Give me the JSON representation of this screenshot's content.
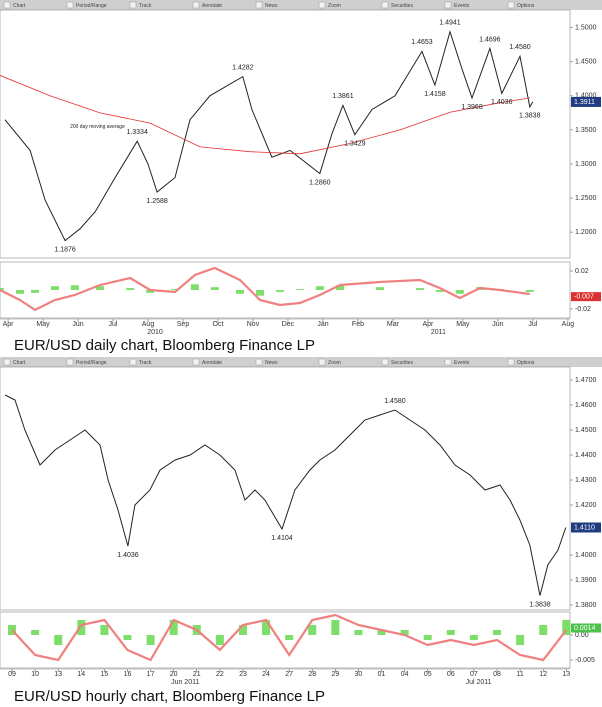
{
  "chart_data": [
    {
      "type": "line",
      "title": "EUR/USD daily chart, Bloomberg Finance LP",
      "toolbar": [
        "Chart",
        "Period/Range",
        "Track",
        "Annotate",
        "News",
        "Zoom",
        "Securities",
        "Events",
        "Options"
      ],
      "xlim": [
        -0.23,
        16.06
      ],
      "xticks": [
        {
          "value": 0,
          "label": "Apr"
        },
        {
          "value": 1,
          "label": "May"
        },
        {
          "value": 2,
          "label": "Jun"
        },
        {
          "value": 3,
          "label": "Jul"
        },
        {
          "value": 4,
          "label": "Aug"
        },
        {
          "value": 5,
          "label": "Sep"
        },
        {
          "value": 6,
          "label": "Oct"
        },
        {
          "value": 7,
          "label": "Nov"
        },
        {
          "value": 8,
          "label": "Dec"
        },
        {
          "value": 9,
          "label": "Jan"
        },
        {
          "value": 10,
          "label": "Feb"
        },
        {
          "value": 11,
          "label": "Mar"
        },
        {
          "value": 12,
          "label": "Apr"
        },
        {
          "value": 13,
          "label": "May"
        },
        {
          "value": 14,
          "label": "Jun"
        },
        {
          "value": 15,
          "label": "Jul"
        },
        {
          "value": 16,
          "label": "Aug"
        }
      ],
      "periods": [
        {
          "value": 4.2,
          "label": "2010"
        },
        {
          "value": 12.3,
          "label": "2011"
        }
      ],
      "ylim": [
        1.162,
        1.526
      ],
      "yticks": [
        {
          "value": 1.2,
          "label": "1.2000"
        },
        {
          "value": 1.25,
          "label": "1.2500"
        },
        {
          "value": 1.3,
          "label": "1.3000"
        },
        {
          "value": 1.35,
          "label": "1.3500"
        },
        {
          "value": 1.4,
          "label": "1.4000"
        },
        {
          "value": 1.45,
          "label": "1.4500"
        },
        {
          "value": 1.5,
          "label": "1.5000"
        }
      ],
      "series": [
        {
          "color": "#222222",
          "x": [
            -0.09,
            0.63,
            1.06,
            1.63,
            2.06,
            2.49,
            3.06,
            3.69,
            4.0,
            4.26,
            4.77,
            5.2,
            5.77,
            6.71,
            6.97,
            7.54,
            8.06,
            8.91,
            9.26,
            9.57,
            9.91,
            10.4,
            11.06,
            11.83,
            12.2,
            12.63,
            12.97,
            13.26,
            13.77,
            14.11,
            14.63,
            14.91,
            15.0
          ],
          "values": [
            1.365,
            1.32,
            1.247,
            1.1876,
            1.205,
            1.23,
            1.28,
            1.3334,
            1.3,
            1.2588,
            1.28,
            1.365,
            1.4,
            1.4282,
            1.38,
            1.31,
            1.32,
            1.286,
            1.345,
            1.3861,
            1.3429,
            1.38,
            1.4,
            1.4653,
            1.4158,
            1.4941,
            1.44,
            1.3968,
            1.4696,
            1.4036,
            1.458,
            1.3838,
            1.3911
          ]
        },
        {
          "name": "200 day moving average",
          "color": "#e03030",
          "x": [
            -0.23,
            1.2,
            2.63,
            4.06,
            5.49,
            6.91,
            8.34,
            9.77,
            11.2,
            12.63,
            14.06,
            14.91
          ],
          "values": [
            1.43,
            1.4,
            1.375,
            1.36,
            1.325,
            1.318,
            1.315,
            1.33,
            1.35,
            1.376,
            1.39,
            1.397
          ]
        }
      ],
      "annotations": [
        {
          "x": 1.63,
          "value": 1.1876,
          "label": "1.1876"
        },
        {
          "x": 3.69,
          "value": 1.3334,
          "label": "1.3334"
        },
        {
          "x": 4.26,
          "value": 1.2588,
          "label": "1.2588"
        },
        {
          "x": 6.71,
          "value": 1.4282,
          "label": "1.4282"
        },
        {
          "x": 8.91,
          "value": 1.286,
          "label": "1.2860"
        },
        {
          "x": 9.57,
          "value": 1.3861,
          "label": "1.3861"
        },
        {
          "x": 9.91,
          "value": 1.3429,
          "label": "1.3429"
        },
        {
          "x": 11.83,
          "value": 1.4653,
          "label": "1.4653"
        },
        {
          "x": 12.2,
          "value": 1.4158,
          "label": "1.4158"
        },
        {
          "x": 12.63,
          "value": 1.4941,
          "label": "1.4941"
        },
        {
          "x": 13.26,
          "value": 1.3968,
          "label": "1.3968"
        },
        {
          "x": 13.77,
          "value": 1.4696,
          "label": "1.4696"
        },
        {
          "x": 14.11,
          "value": 1.4036,
          "label": "1.4036"
        },
        {
          "x": 14.63,
          "value": 1.458,
          "label": "1.4580"
        },
        {
          "x": 14.91,
          "value": 1.3838,
          "label": "1.3838"
        }
      ],
      "last_value": {
        "value": 1.3911,
        "label": "1.3911"
      },
      "indicator": {
        "ylim": [
          -0.0295,
          0.0295
        ],
        "yticks": [
          0.02,
          -0.02
        ],
        "last_value": -0.007,
        "line_color": "#f08080",
        "histogram_color": "#66d94f",
        "x": [
          -0.23,
          0.34,
          0.77,
          1.34,
          1.91,
          2.63,
          3.49,
          4.06,
          4.77,
          5.34,
          5.91,
          6.63,
          7.2,
          7.77,
          8.34,
          8.91,
          9.49,
          10.63,
          11.77,
          12.34,
          12.91,
          13.49,
          14.06,
          14.91
        ],
        "line": [
          0,
          -0.0105,
          -0.021,
          -0.0105,
          -0.0053,
          0.0053,
          0.0126,
          0,
          -0.0021,
          0.0158,
          0.0232,
          0.0105,
          -0.0105,
          -0.0158,
          -0.0137,
          -0.0053,
          0.0053,
          0.0084,
          0.0105,
          0.0021,
          -0.0084,
          0.0021,
          0,
          -0.0042
        ],
        "histogram": [
          0.002,
          -0.004,
          -0.003,
          0.004,
          0.005,
          0.004,
          0.002,
          -0.003,
          0.001,
          0.006,
          0.003,
          -0.004,
          -0.006,
          -0.002,
          0.001,
          0.004,
          0.005,
          0.003,
          0.002,
          -0.002,
          -0.004,
          0.003,
          0.001,
          -0.002
        ]
      }
    },
    {
      "type": "line",
      "title": "EUR/USD hourly chart, Bloomberg Finance LP",
      "toolbar": [
        "Chart",
        "Period/Range",
        "Track",
        "Annotate",
        "News",
        "Zoom",
        "Securities",
        "Events",
        "Options"
      ],
      "xlim": [
        -0.52,
        24.16
      ],
      "xticks": [
        {
          "value": 0,
          "label": "09"
        },
        {
          "value": 1,
          "label": "10"
        },
        {
          "value": 2,
          "label": "13"
        },
        {
          "value": 3,
          "label": "14"
        },
        {
          "value": 4,
          "label": "15"
        },
        {
          "value": 5,
          "label": "16"
        },
        {
          "value": 6,
          "label": "17"
        },
        {
          "value": 7,
          "label": "20"
        },
        {
          "value": 8,
          "label": "21"
        },
        {
          "value": 9,
          "label": "22"
        },
        {
          "value": 10,
          "label": "23"
        },
        {
          "value": 11,
          "label": "24"
        },
        {
          "value": 12,
          "label": "27"
        },
        {
          "value": 13,
          "label": "28"
        },
        {
          "value": 14,
          "label": "29"
        },
        {
          "value": 15,
          "label": "30"
        },
        {
          "value": 16,
          "label": "01"
        },
        {
          "value": 17,
          "label": "04"
        },
        {
          "value": 18,
          "label": "05"
        },
        {
          "value": 19,
          "label": "06"
        },
        {
          "value": 20,
          "label": "07"
        },
        {
          "value": 21,
          "label": "08"
        },
        {
          "value": 22,
          "label": "11"
        },
        {
          "value": 23,
          "label": "12"
        },
        {
          "value": 24,
          "label": "13"
        }
      ],
      "periods": [
        {
          "value": 7.5,
          "label": "Jun 2011"
        },
        {
          "value": 20.2,
          "label": "Jul 2011"
        }
      ],
      "ylim": [
        1.378,
        1.4752
      ],
      "yticks": [
        {
          "value": 1.38,
          "label": "1.3800"
        },
        {
          "value": 1.39,
          "label": "1.3900"
        },
        {
          "value": 1.4,
          "label": "1.4000"
        },
        {
          "value": 1.42,
          "label": "1.4200"
        },
        {
          "value": 1.43,
          "label": "1.4300"
        },
        {
          "value": 1.44,
          "label": "1.4400"
        },
        {
          "value": 1.45,
          "label": "1.4500"
        },
        {
          "value": 1.46,
          "label": "1.4600"
        },
        {
          "value": 1.47,
          "label": "1.4700"
        }
      ],
      "series": [
        {
          "color": "#222222",
          "x": [
            -0.3,
            0.13,
            0.56,
            1.21,
            1.86,
            2.51,
            3.16,
            3.81,
            4.16,
            4.59,
            5.02,
            5.32,
            5.97,
            6.41,
            7.06,
            7.71,
            8.35,
            9.0,
            9.65,
            10.09,
            10.52,
            10.95,
            11.69,
            12.25,
            12.9,
            13.33,
            13.98,
            14.63,
            15.28,
            15.93,
            16.58,
            17.23,
            17.88,
            18.53,
            19.18,
            19.83,
            20.48,
            21.13,
            21.56,
            21.99,
            22.42,
            22.86,
            23.2,
            23.64,
            23.98
          ],
          "values": [
            1.464,
            1.462,
            1.45,
            1.436,
            1.442,
            1.446,
            1.45,
            1.444,
            1.43,
            1.418,
            1.4036,
            1.42,
            1.426,
            1.434,
            1.438,
            1.44,
            1.444,
            1.44,
            1.434,
            1.422,
            1.426,
            1.422,
            1.4104,
            1.426,
            1.434,
            1.438,
            1.442,
            1.448,
            1.454,
            1.456,
            1.458,
            1.454,
            1.45,
            1.444,
            1.436,
            1.432,
            1.426,
            1.428,
            1.422,
            1.414,
            1.404,
            1.3838,
            1.396,
            1.402,
            1.411
          ]
        }
      ],
      "annotations": [
        {
          "x": 5.02,
          "value": 1.4036,
          "label": "1.4036"
        },
        {
          "x": 11.69,
          "value": 1.4104,
          "label": "1.4104"
        },
        {
          "x": 16.58,
          "value": 1.458,
          "label": "1.4580"
        },
        {
          "x": 22.86,
          "value": 1.3838,
          "label": "1.3838"
        }
      ],
      "last_value": {
        "value": 1.411,
        "label": "1.4110"
      },
      "indicator": {
        "ylim": [
          -0.0066,
          0.0046
        ],
        "yticks": [
          {
            "value": 0,
            "label": "0.00"
          },
          {
            "value": -0.005,
            "label": "-0.005"
          }
        ],
        "last_value": 0.0014,
        "line_color": "#f08080",
        "histogram_color": "#66d94f",
        "x": [
          0,
          1,
          2,
          3,
          4,
          5,
          6,
          7,
          8,
          9,
          10,
          11,
          12,
          13,
          14,
          15,
          16,
          17,
          18,
          19,
          20,
          21,
          22,
          23,
          24
        ],
        "line": [
          0.001,
          -0.004,
          -0.005,
          0.002,
          0.003,
          -0.003,
          -0.005,
          0.003,
          0.001,
          -0.003,
          0.002,
          0.003,
          -0.004,
          0.003,
          0.004,
          0.002,
          0.001,
          0,
          -0.002,
          -0.001,
          -0.002,
          -0.001,
          -0.004,
          -0.005,
          0.001
        ],
        "histogram": [
          0.002,
          0.001,
          -0.002,
          0.003,
          0.002,
          -0.001,
          -0.002,
          0.003,
          0.002,
          -0.002,
          0.002,
          0.003,
          -0.001,
          0.002,
          0.003,
          0.001,
          0.001,
          0.001,
          -0.001,
          0.001,
          -0.001,
          0.001,
          -0.002,
          0.002,
          0.003
        ]
      }
    }
  ]
}
